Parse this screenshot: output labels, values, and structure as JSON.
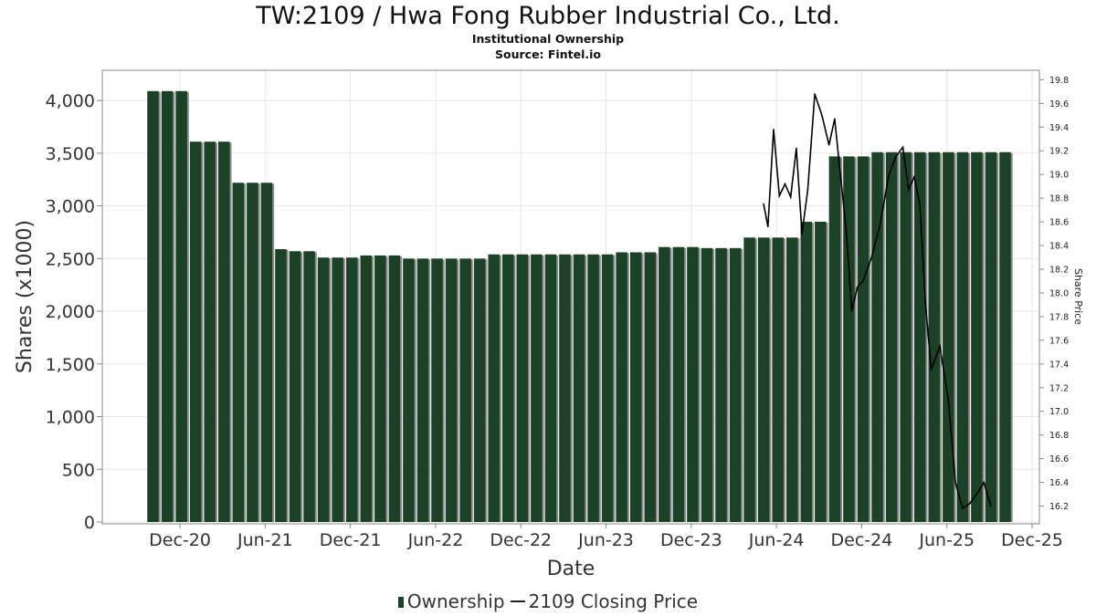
{
  "chart_data": {
    "type": "bar",
    "title": "TW:2109 / Hwa Fong Rubber Industrial Co., Ltd.",
    "subtitle": "Institutional Ownership",
    "source": "Source: Fintel.io",
    "xlabel": "Date",
    "ylabel": "Shares (x1000)",
    "y2label": "Share Price",
    "x_ticks": [
      "Dec-20",
      "Jun-21",
      "Dec-21",
      "Jun-22",
      "Dec-22",
      "Jun-23",
      "Dec-23",
      "Jun-24",
      "Dec-24",
      "Jun-25",
      "Dec-25"
    ],
    "y_ticks": [
      "0",
      "500",
      "1,000",
      "1,500",
      "2,000",
      "2,500",
      "3,000",
      "3,500",
      "4,000"
    ],
    "y2_ticks": [
      "16.2",
      "16.4",
      "16.6",
      "16.8",
      "17.0",
      "17.2",
      "17.4",
      "17.6",
      "17.8",
      "18.0",
      "18.2",
      "18.4",
      "18.6",
      "18.8",
      "19.0",
      "19.2",
      "19.4",
      "19.6",
      "19.8"
    ],
    "ylim": [
      0,
      4200
    ],
    "y2lim": [
      16.05,
      19.88
    ],
    "grid": true,
    "legend_position": "bottom",
    "legend": [
      "Ownership",
      "2109 Closing Price"
    ],
    "series": [
      {
        "name": "Ownership",
        "color": "#1b4226",
        "x_months": [
          0,
          1,
          2,
          3,
          4,
          5,
          6,
          7,
          8,
          9,
          10,
          11,
          12,
          13,
          14,
          15,
          16,
          17,
          18,
          19,
          20,
          21,
          22,
          23,
          24,
          25,
          26,
          27,
          28,
          29,
          30,
          31,
          32,
          33,
          34,
          35,
          36,
          37,
          38,
          39,
          40,
          41,
          42,
          43,
          44,
          45,
          46,
          47,
          48,
          49,
          50,
          51,
          52,
          53,
          54,
          55,
          56,
          57,
          58,
          59,
          60
        ],
        "values": [
          4090,
          4090,
          4090,
          3610,
          3610,
          3610,
          3220,
          3220,
          3220,
          2590,
          2570,
          2570,
          2510,
          2510,
          2510,
          2530,
          2530,
          2530,
          2500,
          2500,
          2500,
          2500,
          2500,
          2500,
          2540,
          2540,
          2540,
          2540,
          2540,
          2540,
          2540,
          2540,
          2540,
          2560,
          2560,
          2560,
          2610,
          2610,
          2610,
          2600,
          2600,
          2600,
          2700,
          2700,
          2700,
          2700,
          2850,
          2850,
          3470,
          3470,
          3470,
          3510,
          3510,
          3510,
          3510,
          3510,
          3510,
          3510,
          3510,
          3510,
          3510
        ]
      },
      {
        "name": "2109 Closing Price",
        "color": "#000000",
        "x_months": [
          43.0,
          43.3,
          43.7,
          44.1,
          44.5,
          44.9,
          45.3,
          45.7,
          46.1,
          46.6,
          47.1,
          47.6,
          48.0,
          48.4,
          48.8,
          49.2,
          49.6,
          50.0,
          50.6,
          51.2,
          51.8,
          52.3,
          52.8,
          53.2,
          53.6,
          54.0,
          54.4,
          54.8,
          55.4,
          56.0,
          56.5,
          57.0,
          57.5,
          58.0,
          58.5,
          59.0
        ],
        "values": [
          18.75,
          18.56,
          19.38,
          18.82,
          18.92,
          18.81,
          19.22,
          18.5,
          18.87,
          19.68,
          19.5,
          19.25,
          19.47,
          19.0,
          18.55,
          17.85,
          18.05,
          18.1,
          18.3,
          18.58,
          18.99,
          19.15,
          19.23,
          18.87,
          18.98,
          18.74,
          17.9,
          17.35,
          17.55,
          17.1,
          16.4,
          16.18,
          16.22,
          16.3,
          16.4,
          16.2
        ]
      }
    ]
  },
  "legend": {
    "ownership_label": "Ownership",
    "price_label": "2109 Closing Price"
  }
}
